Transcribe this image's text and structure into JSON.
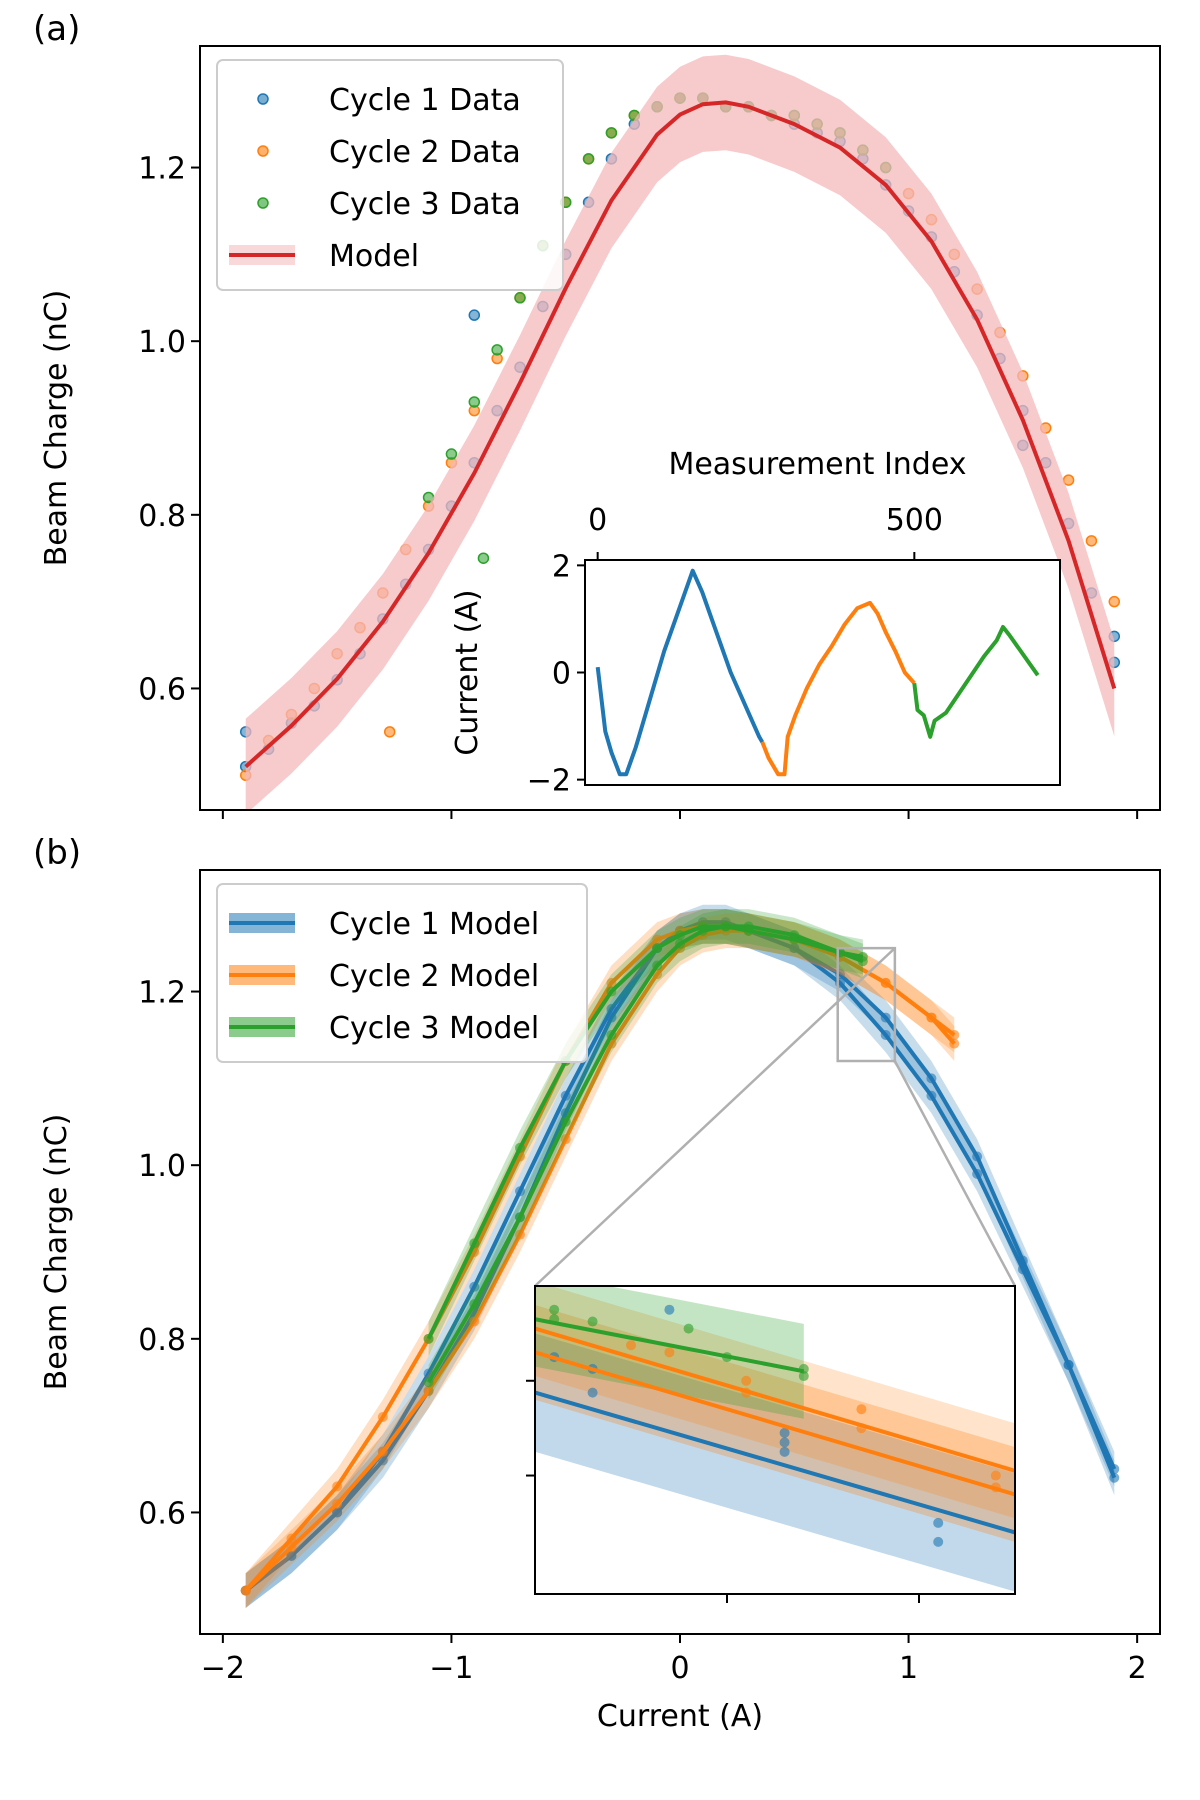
{
  "panel_labels": [
    "(a)",
    "(b)"
  ],
  "colors": {
    "cycle1": "#1f77b4",
    "cycle2": "#ff7f0e",
    "cycle3": "#2ca02c",
    "model": "#d62728",
    "band_model": "#f4b8bb",
    "zoom_box": "#b0b0b0"
  },
  "chart_data": [
    {
      "id": "panel-a",
      "type": "scatter",
      "xlabel": "",
      "ylabel": "Beam Charge (nC)",
      "xlim": [
        -2.1,
        2.1
      ],
      "ylim": [
        0.46,
        1.34
      ],
      "xticks": [
        -2,
        -1,
        0,
        1,
        2
      ],
      "yticks": [
        0.6,
        0.8,
        1.0,
        1.2
      ],
      "ytick_labels": [
        "0.6",
        "0.8",
        "1.0",
        "1.2"
      ],
      "legend": {
        "position": "top-left",
        "entries": [
          "Cycle 1 Data",
          "Cycle 2 Data",
          "Cycle 3 Data",
          "Model"
        ]
      },
      "series": [
        {
          "name": "Cycle 1 Data",
          "kind": "points",
          "color": "#1f77b4",
          "x": [
            -1.9,
            -1.8,
            -1.7,
            -1.6,
            -1.5,
            -1.4,
            -1.3,
            -1.2,
            -1.1,
            -1.0,
            -0.9,
            -0.8,
            -0.7,
            -0.6,
            -0.5,
            -0.4,
            -0.3,
            -0.2,
            -0.1,
            0.0,
            0.1,
            0.2,
            0.3,
            0.4,
            0.5,
            0.6,
            0.7,
            0.8,
            0.9,
            1.0,
            1.1,
            1.2,
            1.3,
            1.4,
            1.5,
            1.6,
            1.7,
            1.8,
            1.9,
            -1.9,
            -0.9,
            1.5,
            1.9
          ],
          "y": [
            0.51,
            0.53,
            0.56,
            0.58,
            0.61,
            0.64,
            0.68,
            0.72,
            0.76,
            0.81,
            0.86,
            0.92,
            0.97,
            1.04,
            1.1,
            1.16,
            1.21,
            1.25,
            1.27,
            1.28,
            1.28,
            1.27,
            1.27,
            1.26,
            1.25,
            1.24,
            1.23,
            1.21,
            1.18,
            1.15,
            1.12,
            1.08,
            1.03,
            0.98,
            0.92,
            0.86,
            0.79,
            0.71,
            0.63,
            0.55,
            1.03,
            0.88,
            0.66
          ]
        },
        {
          "name": "Cycle 2 Data",
          "kind": "points",
          "color": "#ff7f0e",
          "x": [
            -1.9,
            -1.8,
            -1.7,
            -1.6,
            -1.5,
            -1.4,
            -1.3,
            -1.2,
            -1.1,
            -1.0,
            -0.9,
            -0.8,
            -0.7,
            -0.6,
            -0.5,
            -0.4,
            -0.3,
            -0.2,
            -0.1,
            0.0,
            0.1,
            0.2,
            0.3,
            0.4,
            0.5,
            0.6,
            0.7,
            0.8,
            0.9,
            1.0,
            1.1,
            1.2,
            1.3,
            1.4,
            1.5,
            1.6,
            1.7,
            1.8,
            1.9,
            -1.27
          ],
          "y": [
            0.5,
            0.54,
            0.57,
            0.6,
            0.64,
            0.67,
            0.71,
            0.76,
            0.81,
            0.86,
            0.92,
            0.98,
            1.05,
            1.11,
            1.16,
            1.21,
            1.24,
            1.26,
            1.27,
            1.28,
            1.28,
            1.27,
            1.27,
            1.26,
            1.26,
            1.25,
            1.24,
            1.22,
            1.2,
            1.17,
            1.14,
            1.1,
            1.06,
            1.01,
            0.96,
            0.9,
            0.84,
            0.77,
            0.7,
            0.55
          ]
        },
        {
          "name": "Cycle 3 Data",
          "kind": "points",
          "color": "#2ca02c",
          "x": [
            -1.1,
            -1.0,
            -0.9,
            -0.8,
            -0.7,
            -0.6,
            -0.5,
            -0.4,
            -0.3,
            -0.2,
            -0.1,
            0.0,
            0.1,
            0.2,
            0.3,
            0.4,
            0.5,
            0.6,
            0.7,
            0.8,
            0.9,
            -0.86
          ],
          "y": [
            0.82,
            0.87,
            0.93,
            0.99,
            1.05,
            1.11,
            1.16,
            1.21,
            1.24,
            1.26,
            1.27,
            1.28,
            1.28,
            1.27,
            1.27,
            1.26,
            1.26,
            1.25,
            1.24,
            1.22,
            1.2,
            0.75
          ]
        },
        {
          "name": "Model",
          "kind": "line_band",
          "color": "#d62728",
          "x": [
            -1.9,
            -1.7,
            -1.5,
            -1.3,
            -1.1,
            -0.9,
            -0.7,
            -0.5,
            -0.3,
            -0.1,
            0.0,
            0.1,
            0.2,
            0.3,
            0.5,
            0.7,
            0.9,
            1.1,
            1.3,
            1.5,
            1.7,
            1.9
          ],
          "y": [
            0.51,
            0.557,
            0.611,
            0.677,
            0.756,
            0.848,
            0.952,
            1.061,
            1.162,
            1.238,
            1.261,
            1.273,
            1.275,
            1.27,
            1.25,
            1.223,
            1.18,
            1.115,
            1.025,
            0.909,
            0.77,
            0.6
          ],
          "band": 0.055
        }
      ]
    },
    {
      "id": "panel-a-inset",
      "type": "line",
      "xlabel": "Measurement Index",
      "ylabel": "Current (A)",
      "xlim": [
        -20,
        730
      ],
      "ylim": [
        -2.1,
        2.1
      ],
      "xticks": [
        0,
        500
      ],
      "xtick_labels": [
        "0",
        "500"
      ],
      "yticks": [
        2,
        0,
        -2
      ],
      "ytick_labels": [
        "2",
        "0",
        "−2"
      ],
      "series": [
        {
          "name": "",
          "color": "#1f77b4",
          "x": [
            0,
            12,
            22,
            35,
            45,
            60,
            75,
            90,
            105,
            120,
            135,
            150,
            165,
            180,
            195,
            210,
            225,
            240,
            255,
            260
          ],
          "y": [
            0.1,
            -1.1,
            -1.5,
            -1.9,
            -1.9,
            -1.4,
            -0.8,
            -0.2,
            0.4,
            0.9,
            1.4,
            1.9,
            1.5,
            1.0,
            0.5,
            0.0,
            -0.4,
            -0.8,
            -1.2,
            -1.3
          ]
        },
        {
          "name": "",
          "color": "#ff7f0e",
          "x": [
            260,
            270,
            285,
            295,
            300,
            312,
            330,
            350,
            370,
            390,
            410,
            430,
            442,
            455,
            470,
            485,
            500
          ],
          "y": [
            -1.3,
            -1.6,
            -1.9,
            -1.9,
            -1.2,
            -0.8,
            -0.3,
            0.15,
            0.5,
            0.9,
            1.2,
            1.3,
            1.1,
            0.75,
            0.4,
            0.0,
            -0.2
          ]
        },
        {
          "name": "",
          "color": "#2ca02c",
          "x": [
            500,
            505,
            515,
            525,
            532,
            550,
            570,
            590,
            610,
            630,
            640,
            650,
            665,
            680,
            695
          ],
          "y": [
            -0.2,
            -0.7,
            -0.8,
            -1.2,
            -0.9,
            -0.75,
            -0.4,
            -0.05,
            0.3,
            0.6,
            0.85,
            0.7,
            0.45,
            0.2,
            -0.05
          ]
        }
      ]
    },
    {
      "id": "panel-b",
      "type": "scatter",
      "xlabel": "Current (A)",
      "ylabel": "Beam Charge (nC)",
      "xlim": [
        -2.1,
        2.1
      ],
      "ylim": [
        0.46,
        1.34
      ],
      "xticks": [
        -2,
        -1,
        0,
        1,
        2
      ],
      "xtick_labels": [
        "−2",
        "−1",
        "0",
        "1",
        "2"
      ],
      "yticks": [
        0.6,
        0.8,
        1.0,
        1.2
      ],
      "ytick_labels": [
        "0.6",
        "0.8",
        "1.0",
        "1.2"
      ],
      "legend": {
        "position": "top-left",
        "entries": [
          "Cycle 1 Model",
          "Cycle 2 Model",
          "Cycle 3 Model"
        ]
      },
      "series": [
        {
          "name": "Cycle 1 Model",
          "color": "#1f77b4",
          "band": 0.02,
          "x": [
            -1.9,
            -1.7,
            -1.5,
            -1.3,
            -1.1,
            -0.9,
            -0.7,
            -0.5,
            -0.3,
            -0.1,
            0.0,
            0.1,
            0.2,
            0.3,
            0.5,
            0.7,
            0.9,
            1.1,
            1.3,
            1.5,
            1.7,
            1.9
          ],
          "y": [
            0.51,
            0.55,
            0.6,
            0.66,
            0.74,
            0.83,
            0.94,
            1.06,
            1.17,
            1.25,
            1.27,
            1.275,
            1.275,
            1.27,
            1.25,
            1.22,
            1.17,
            1.1,
            1.01,
            0.89,
            0.77,
            0.64
          ],
          "x2": [
            -1.9,
            -1.7,
            -1.5,
            -1.3,
            -1.1,
            -0.9,
            -0.7,
            -0.5,
            -0.3,
            -0.1,
            0.0,
            0.1,
            0.2,
            0.3,
            0.5,
            0.7,
            0.9,
            1.1,
            1.3,
            1.5,
            1.7,
            1.9
          ],
          "y2": [
            0.51,
            0.55,
            0.6,
            0.67,
            0.76,
            0.86,
            0.97,
            1.08,
            1.18,
            1.25,
            1.27,
            1.28,
            1.28,
            1.27,
            1.25,
            1.21,
            1.15,
            1.08,
            0.99,
            0.88,
            0.77,
            0.65
          ]
        },
        {
          "name": "Cycle 2 Model",
          "color": "#ff7f0e",
          "band": 0.02,
          "x": [
            -1.9,
            -1.7,
            -1.5,
            -1.3,
            -1.1,
            -0.9,
            -0.7,
            -0.5,
            -0.3,
            -0.1,
            0.0,
            0.1,
            0.2,
            0.3,
            0.5,
            0.7,
            0.9,
            1.1,
            1.2
          ],
          "y": [
            0.51,
            0.56,
            0.61,
            0.67,
            0.74,
            0.82,
            0.92,
            1.03,
            1.14,
            1.22,
            1.25,
            1.265,
            1.27,
            1.27,
            1.26,
            1.24,
            1.21,
            1.17,
            1.14
          ],
          "x2": [
            -1.9,
            -1.7,
            -1.5,
            -1.3,
            -1.1,
            -0.9,
            -0.7,
            -0.5,
            -0.3,
            -0.1,
            0.0,
            0.1,
            0.2,
            0.3,
            0.5,
            0.7,
            0.9,
            1.1,
            1.2
          ],
          "y2": [
            0.51,
            0.57,
            0.63,
            0.71,
            0.8,
            0.9,
            1.01,
            1.12,
            1.21,
            1.26,
            1.27,
            1.275,
            1.275,
            1.27,
            1.26,
            1.24,
            1.21,
            1.17,
            1.15
          ]
        },
        {
          "name": "Cycle 3 Model",
          "color": "#2ca02c",
          "band": 0.02,
          "x": [
            -1.1,
            -0.9,
            -0.7,
            -0.5,
            -0.3,
            -0.1,
            0.0,
            0.1,
            0.2,
            0.3,
            0.5,
            0.7,
            0.8
          ],
          "y": [
            0.75,
            0.84,
            0.94,
            1.05,
            1.15,
            1.23,
            1.255,
            1.27,
            1.275,
            1.275,
            1.265,
            1.245,
            1.235
          ],
          "x2": [
            -1.1,
            -0.9,
            -0.7,
            -0.5,
            -0.3,
            -0.1,
            0.0,
            0.1,
            0.2,
            0.3,
            0.5,
            0.7,
            0.8
          ],
          "y2": [
            0.8,
            0.91,
            1.02,
            1.12,
            1.2,
            1.25,
            1.265,
            1.275,
            1.275,
            1.27,
            1.26,
            1.245,
            1.24
          ]
        }
      ]
    },
    {
      "id": "panel-b-inset",
      "type": "line",
      "xlabel": "",
      "ylabel": "",
      "xlim": [
        0.69,
        0.94
      ],
      "ylim": [
        1.12,
        1.25
      ],
      "xticks": [
        0.79,
        0.89
      ],
      "yticks": [
        1.17,
        1.21
      ],
      "series": [
        {
          "name": "Cycle 1 Model",
          "color": "#1f77b4",
          "x": [
            0.69,
            0.94
          ],
          "y": [
            1.205,
            1.146
          ],
          "band": 0.025,
          "points_x": [
            0.7,
            0.72,
            0.72,
            0.76,
            0.82,
            0.82,
            0.82,
            0.9,
            0.9
          ],
          "points_y": [
            1.22,
            1.215,
            1.205,
            1.24,
            1.188,
            1.184,
            1.18,
            1.15,
            1.142
          ]
        },
        {
          "name": "Cycle 2 Model",
          "color": "#ff7f0e",
          "x": [
            0.69,
            0.94
          ],
          "y": [
            1.222,
            1.162
          ],
          "band": 0.02,
          "x2": [
            0.69,
            0.94
          ],
          "y2": [
            1.232,
            1.172
          ],
          "points_x": [
            0.74,
            0.76,
            0.8,
            0.8,
            0.86,
            0.86,
            0.93,
            0.93
          ],
          "points_y": [
            1.225,
            1.222,
            1.21,
            1.205,
            1.198,
            1.19,
            1.17,
            1.165
          ]
        },
        {
          "name": "Cycle 3 Model",
          "color": "#2ca02c",
          "x": [
            0.69,
            0.83
          ],
          "y": [
            1.236,
            1.214
          ],
          "band": 0.02,
          "band_x_end": 0.83,
          "points_x": [
            0.7,
            0.7,
            0.72,
            0.77,
            0.79,
            0.83,
            0.83
          ],
          "points_y": [
            1.24,
            1.236,
            1.235,
            1.232,
            1.22,
            1.215,
            1.212
          ]
        }
      ]
    }
  ]
}
